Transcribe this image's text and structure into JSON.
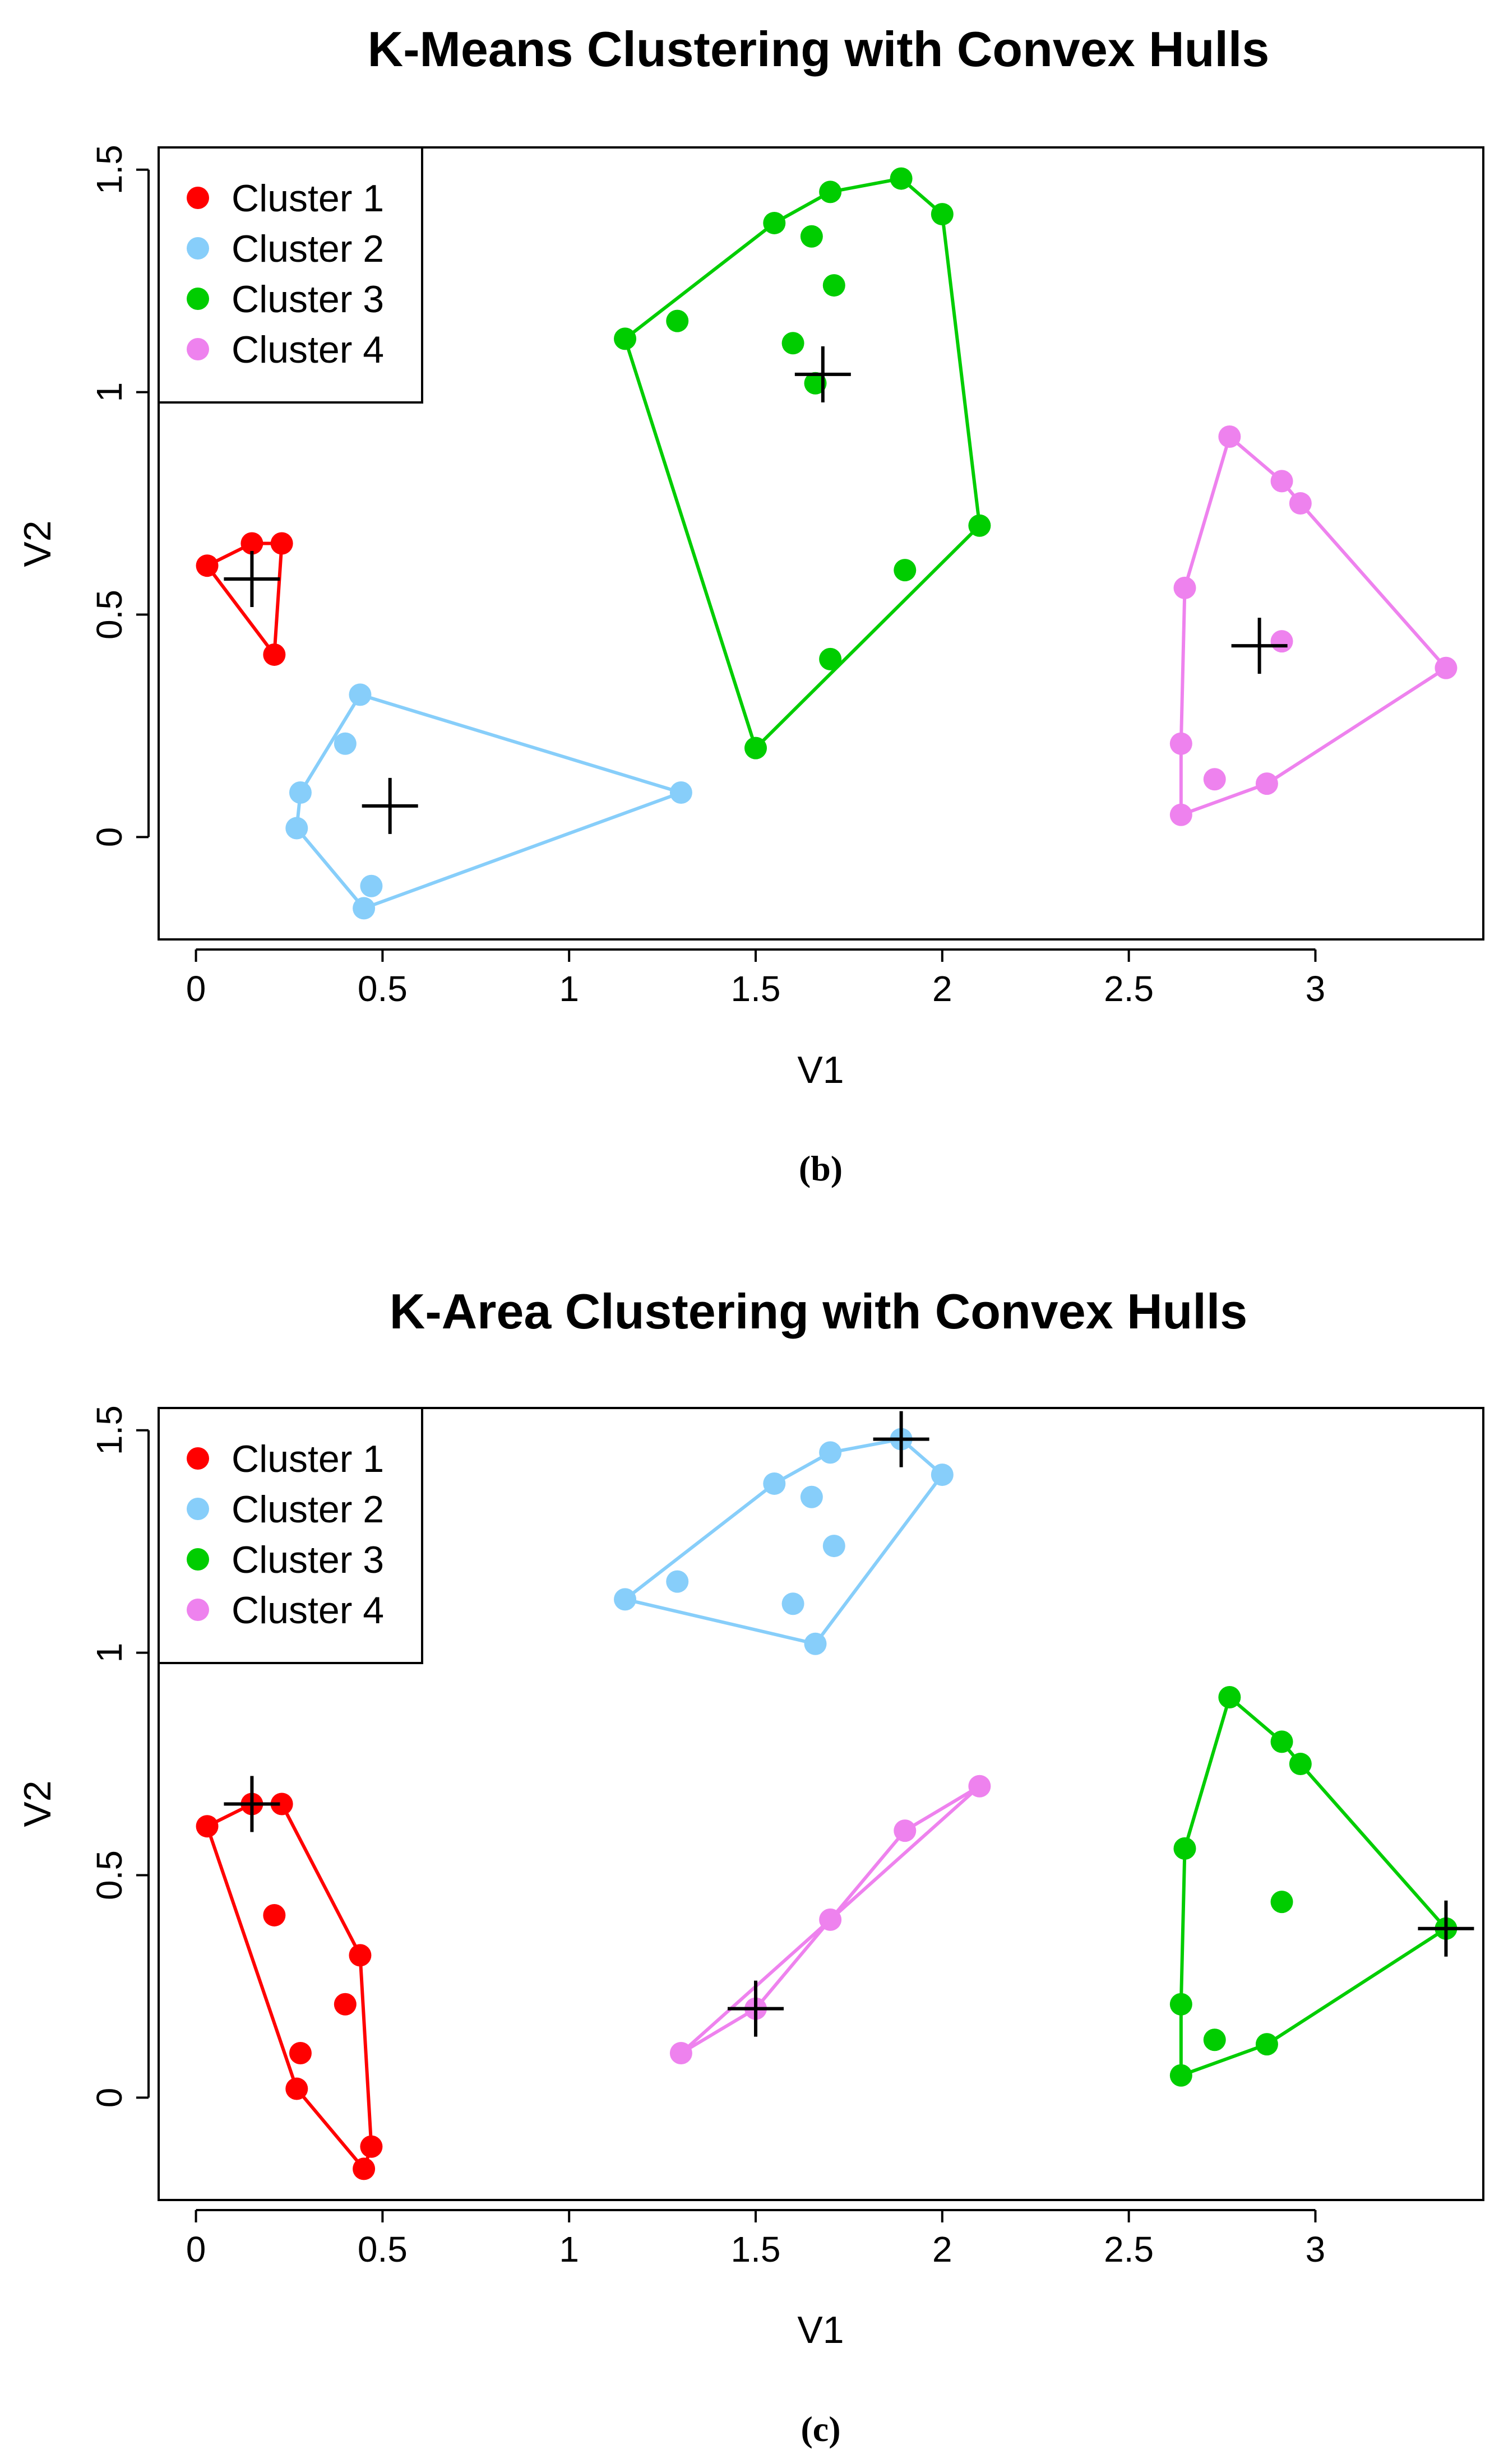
{
  "figure": {
    "captions": [
      "(b)",
      "(c)"
    ]
  },
  "chart_data": [
    {
      "type": "scatter",
      "title": "K-Means Clustering with Convex Hulls",
      "xlabel": "V1",
      "ylabel": "V2",
      "xlim": [
        -0.1,
        3.45
      ],
      "ylim": [
        -0.23,
        1.55
      ],
      "xticks": [
        {
          "value": 0,
          "label": "0"
        },
        {
          "value": 0.5,
          "label": "0.5"
        },
        {
          "value": 1,
          "label": "1"
        },
        {
          "value": 1.5,
          "label": "1.5"
        },
        {
          "value": 2,
          "label": "2"
        },
        {
          "value": 2.5,
          "label": "2.5"
        },
        {
          "value": 3,
          "label": "3"
        }
      ],
      "yticks": [
        {
          "value": 0,
          "label": "0"
        },
        {
          "value": 0.5,
          "label": "0.5"
        },
        {
          "value": 1,
          "label": "1"
        },
        {
          "value": 1.5,
          "label": "1.5"
        }
      ],
      "legend_position": "top-left",
      "grid": false,
      "series": [
        {
          "name": "Cluster 1",
          "color": "#ff0000",
          "points": [
            [
              0.03,
              0.61
            ],
            [
              0.15,
              0.66
            ],
            [
              0.23,
              0.66
            ],
            [
              0.21,
              0.41
            ]
          ],
          "hull": [
            [
              0.03,
              0.61
            ],
            [
              0.15,
              0.66
            ],
            [
              0.23,
              0.66
            ],
            [
              0.21,
              0.41
            ]
          ],
          "center": [
            0.15,
            0.58
          ]
        },
        {
          "name": "Cluster 2",
          "color": "#87cefa",
          "points": [
            [
              0.44,
              0.32
            ],
            [
              0.4,
              0.21
            ],
            [
              0.28,
              0.1
            ],
            [
              0.27,
              0.02
            ],
            [
              0.47,
              -0.11
            ],
            [
              0.45,
              -0.16
            ],
            [
              1.3,
              0.1
            ]
          ],
          "hull": [
            [
              0.44,
              0.32
            ],
            [
              1.3,
              0.1
            ],
            [
              0.45,
              -0.16
            ],
            [
              0.27,
              0.02
            ],
            [
              0.28,
              0.1
            ]
          ],
          "center": [
            0.52,
            0.07
          ]
        },
        {
          "name": "Cluster 3",
          "color": "#00cd00",
          "points": [
            [
              1.15,
              1.12
            ],
            [
              1.29,
              1.16
            ],
            [
              1.55,
              1.38
            ],
            [
              1.7,
              1.45
            ],
            [
              1.89,
              1.48
            ],
            [
              2.0,
              1.4
            ],
            [
              1.65,
              1.35
            ],
            [
              1.71,
              1.24
            ],
            [
              1.6,
              1.11
            ],
            [
              1.66,
              1.02
            ],
            [
              2.1,
              0.7
            ],
            [
              1.9,
              0.6
            ],
            [
              1.7,
              0.4
            ],
            [
              1.5,
              0.2
            ]
          ],
          "hull": [
            [
              1.15,
              1.12
            ],
            [
              1.55,
              1.38
            ],
            [
              1.7,
              1.45
            ],
            [
              1.89,
              1.48
            ],
            [
              2.0,
              1.4
            ],
            [
              2.1,
              0.7
            ],
            [
              1.5,
              0.2
            ]
          ],
          "center": [
            1.68,
            1.04
          ]
        },
        {
          "name": "Cluster 4",
          "color": "#ee82ee",
          "points": [
            [
              2.77,
              0.9
            ],
            [
              2.91,
              0.8
            ],
            [
              2.96,
              0.75
            ],
            [
              2.65,
              0.56
            ],
            [
              2.91,
              0.44
            ],
            [
              3.35,
              0.38
            ],
            [
              2.64,
              0.21
            ],
            [
              2.73,
              0.13
            ],
            [
              2.87,
              0.12
            ],
            [
              2.64,
              0.05
            ]
          ],
          "hull": [
            [
              2.77,
              0.9
            ],
            [
              2.91,
              0.8
            ],
            [
              2.96,
              0.75
            ],
            [
              3.35,
              0.38
            ],
            [
              2.87,
              0.12
            ],
            [
              2.64,
              0.05
            ],
            [
              2.64,
              0.21
            ],
            [
              2.65,
              0.56
            ]
          ],
          "center": [
            2.85,
            0.43
          ]
        }
      ]
    },
    {
      "type": "scatter",
      "title": "K-Area Clustering with Convex Hulls",
      "xlabel": "V1",
      "ylabel": "V2",
      "xlim": [
        -0.1,
        3.45
      ],
      "ylim": [
        -0.23,
        1.55
      ],
      "xticks": [
        {
          "value": 0,
          "label": "0"
        },
        {
          "value": 0.5,
          "label": "0.5"
        },
        {
          "value": 1,
          "label": "1"
        },
        {
          "value": 1.5,
          "label": "1.5"
        },
        {
          "value": 2,
          "label": "2"
        },
        {
          "value": 2.5,
          "label": "2.5"
        },
        {
          "value": 3,
          "label": "3"
        }
      ],
      "yticks": [
        {
          "value": 0,
          "label": "0"
        },
        {
          "value": 0.5,
          "label": "0.5"
        },
        {
          "value": 1,
          "label": "1"
        },
        {
          "value": 1.5,
          "label": "1.5"
        }
      ],
      "legend_position": "top-left",
      "grid": false,
      "series": [
        {
          "name": "Cluster 1",
          "color": "#ff0000",
          "points": [
            [
              0.03,
              0.61
            ],
            [
              0.15,
              0.66
            ],
            [
              0.23,
              0.66
            ],
            [
              0.21,
              0.41
            ],
            [
              0.44,
              0.32
            ],
            [
              0.4,
              0.21
            ],
            [
              0.28,
              0.1
            ],
            [
              0.27,
              0.02
            ],
            [
              0.47,
              -0.11
            ],
            [
              0.45,
              -0.16
            ]
          ],
          "hull": [
            [
              0.03,
              0.61
            ],
            [
              0.15,
              0.66
            ],
            [
              0.23,
              0.66
            ],
            [
              0.44,
              0.32
            ],
            [
              0.47,
              -0.11
            ],
            [
              0.45,
              -0.16
            ],
            [
              0.27,
              0.02
            ]
          ],
          "center": [
            0.15,
            0.66
          ]
        },
        {
          "name": "Cluster 2",
          "color": "#87cefa",
          "points": [
            [
              1.15,
              1.12
            ],
            [
              1.29,
              1.16
            ],
            [
              1.55,
              1.38
            ],
            [
              1.7,
              1.45
            ],
            [
              1.89,
              1.48
            ],
            [
              2.0,
              1.4
            ],
            [
              1.65,
              1.35
            ],
            [
              1.71,
              1.24
            ],
            [
              1.6,
              1.11
            ],
            [
              1.66,
              1.02
            ]
          ],
          "hull": [
            [
              1.15,
              1.12
            ],
            [
              1.55,
              1.38
            ],
            [
              1.7,
              1.45
            ],
            [
              1.89,
              1.48
            ],
            [
              2.0,
              1.4
            ],
            [
              1.66,
              1.02
            ]
          ],
          "center": [
            1.89,
            1.48
          ]
        },
        {
          "name": "Cluster 3",
          "color": "#00cd00",
          "points": [
            [
              2.77,
              0.9
            ],
            [
              2.91,
              0.8
            ],
            [
              2.96,
              0.75
            ],
            [
              2.65,
              0.56
            ],
            [
              2.91,
              0.44
            ],
            [
              3.35,
              0.38
            ],
            [
              2.64,
              0.21
            ],
            [
              2.73,
              0.13
            ],
            [
              2.87,
              0.12
            ],
            [
              2.64,
              0.05
            ]
          ],
          "hull": [
            [
              2.77,
              0.9
            ],
            [
              2.91,
              0.8
            ],
            [
              2.96,
              0.75
            ],
            [
              3.35,
              0.38
            ],
            [
              2.87,
              0.12
            ],
            [
              2.64,
              0.05
            ],
            [
              2.64,
              0.21
            ],
            [
              2.65,
              0.56
            ]
          ],
          "center": [
            3.35,
            0.38
          ]
        },
        {
          "name": "Cluster 4",
          "color": "#ee82ee",
          "points": [
            [
              1.3,
              0.1
            ],
            [
              1.5,
              0.2
            ],
            [
              1.7,
              0.4
            ],
            [
              1.9,
              0.6
            ],
            [
              2.1,
              0.7
            ]
          ],
          "hull": [
            [
              1.3,
              0.1
            ],
            [
              1.5,
              0.2
            ],
            [
              1.7,
              0.4
            ],
            [
              1.9,
              0.6
            ],
            [
              2.1,
              0.7
            ]
          ],
          "center": [
            1.5,
            0.2
          ]
        }
      ]
    }
  ]
}
